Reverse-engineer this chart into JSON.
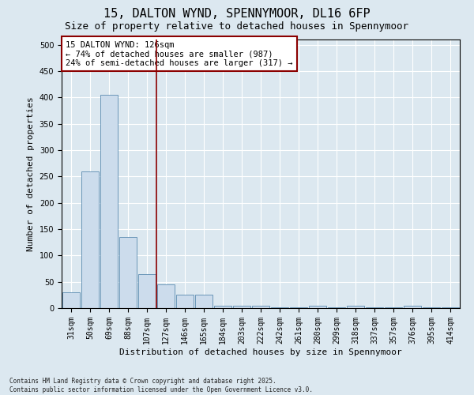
{
  "title_line1": "15, DALTON WYND, SPENNYMOOR, DL16 6FP",
  "title_line2": "Size of property relative to detached houses in Spennymoor",
  "xlabel": "Distribution of detached houses by size in Spennymoor",
  "ylabel": "Number of detached properties",
  "bar_color": "#ccdcec",
  "bar_edge_color": "#5a8ab0",
  "background_color": "#dce8f0",
  "vline_color": "#8b0000",
  "annotation_text": "15 DALTON WYND: 126sqm\n← 74% of detached houses are smaller (987)\n24% of semi-detached houses are larger (317) →",
  "annotation_box_color": "#ffffff",
  "annotation_box_edge": "#8b0000",
  "categories": [
    "31sqm",
    "50sqm",
    "69sqm",
    "88sqm",
    "107sqm",
    "127sqm",
    "146sqm",
    "165sqm",
    "184sqm",
    "203sqm",
    "222sqm",
    "242sqm",
    "261sqm",
    "280sqm",
    "299sqm",
    "318sqm",
    "337sqm",
    "357sqm",
    "376sqm",
    "395sqm",
    "414sqm"
  ],
  "bar_heights": [
    30,
    260,
    405,
    135,
    65,
    45,
    25,
    25,
    5,
    5,
    5,
    2,
    2,
    5,
    2,
    5,
    2,
    2,
    5,
    2,
    2
  ],
  "vline_x": 4.5,
  "ylim": [
    0,
    510
  ],
  "yticks": [
    0,
    50,
    100,
    150,
    200,
    250,
    300,
    350,
    400,
    450,
    500
  ],
  "footer_text": "Contains HM Land Registry data © Crown copyright and database right 2025.\nContains public sector information licensed under the Open Government Licence v3.0.",
  "grid_color": "#ffffff",
  "title_fontsize": 11,
  "subtitle_fontsize": 9,
  "tick_fontsize": 7,
  "ylabel_fontsize": 8,
  "xlabel_fontsize": 8,
  "annotation_fontsize": 7.5,
  "footer_fontsize": 5.5
}
